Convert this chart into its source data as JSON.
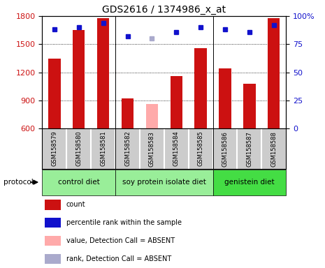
{
  "title": "GDS2616 / 1374986_x_at",
  "samples": [
    "GSM158579",
    "GSM158580",
    "GSM158581",
    "GSM158582",
    "GSM158583",
    "GSM158584",
    "GSM158585",
    "GSM158586",
    "GSM158587",
    "GSM158588"
  ],
  "counts": [
    1350,
    1650,
    1780,
    920,
    null,
    1160,
    1460,
    1240,
    1080,
    1780
  ],
  "counts_absent": [
    null,
    null,
    null,
    null,
    860,
    null,
    null,
    null,
    null,
    null
  ],
  "ranks": [
    88,
    90,
    94,
    82,
    null,
    86,
    90,
    88,
    86,
    92
  ],
  "ranks_absent": [
    null,
    null,
    null,
    null,
    80,
    null,
    null,
    null,
    null,
    null
  ],
  "ylim_left": [
    600,
    1800
  ],
  "ylim_right": [
    0,
    100
  ],
  "yticks_left": [
    600,
    900,
    1200,
    1500,
    1800
  ],
  "yticks_right": [
    0,
    25,
    50,
    75,
    100
  ],
  "bar_color": "#cc1111",
  "bar_absent_color": "#ffaaaa",
  "dot_color": "#1111cc",
  "dot_absent_color": "#aaaacc",
  "grid_color": "#888888",
  "sample_bg_color": "#cccccc",
  "group_info": [
    {
      "label": "control diet",
      "color": "#99ee99",
      "xstart": -0.5,
      "xend": 2.5
    },
    {
      "label": "soy protein isolate diet",
      "color": "#99ee99",
      "xstart": 2.5,
      "xend": 6.5
    },
    {
      "label": "genistein diet",
      "color": "#44dd44",
      "xstart": 6.5,
      "xend": 9.5
    }
  ],
  "legend_items": [
    {
      "color": "#cc1111",
      "label": "count"
    },
    {
      "color": "#1111cc",
      "label": "percentile rank within the sample"
    },
    {
      "color": "#ffaaaa",
      "label": "value, Detection Call = ABSENT"
    },
    {
      "color": "#aaaacc",
      "label": "rank, Detection Call = ABSENT"
    }
  ]
}
